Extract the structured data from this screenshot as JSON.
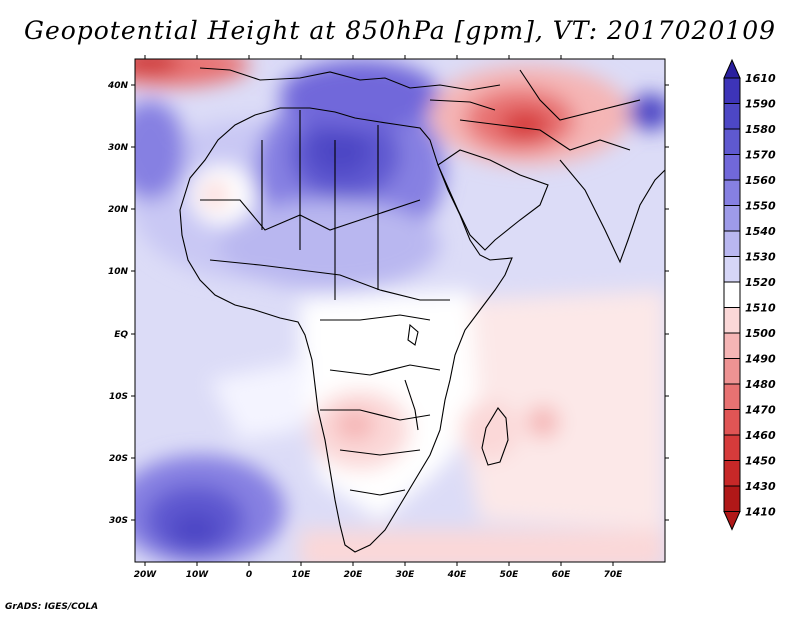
{
  "title": "Geopotential Height at 850hPa [gpm], VT: 2017020109",
  "footer": "GrADS: IGES/COLA",
  "lat_labels": [
    "40N",
    "30N",
    "20N",
    "10N",
    "EQ",
    "10S",
    "20S",
    "30S"
  ],
  "lon_labels": [
    "20W",
    "10W",
    "0",
    "10E",
    "20E",
    "30E",
    "40E",
    "50E",
    "60E",
    "70E"
  ],
  "colorbar": {
    "levels": [
      "1610",
      "1590",
      "1580",
      "1570",
      "1560",
      "1550",
      "1540",
      "1530",
      "1520",
      "1510",
      "1500",
      "1490",
      "1480",
      "1470",
      "1460",
      "1450",
      "1430",
      "1410"
    ],
    "colors": [
      "#2a1f9e",
      "#3d34b8",
      "#4d47c5",
      "#5f59d0",
      "#7168da",
      "#8680e2",
      "#9e9be9",
      "#b9b7f0",
      "#d6d6f7",
      "#ffffff",
      "#fbd8d8",
      "#f5b5b5",
      "#ee9393",
      "#e87272",
      "#e05555",
      "#d63b3b",
      "#c72828",
      "#b01818"
    ]
  },
  "colors": {
    "ocean_base": "#dcdcf7",
    "land_base": "#ffffff"
  }
}
